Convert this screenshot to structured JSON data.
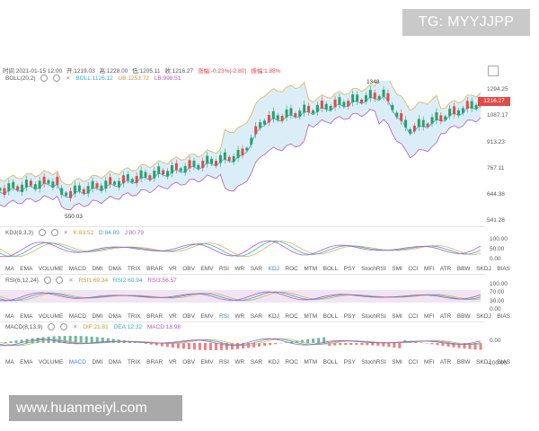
{
  "watermark_top": "TG: MYYJJPP",
  "watermark_bottom": "www.huanmeiyl.com",
  "info": {
    "time": "时间 2021-01-15 12:00",
    "open": "开:1219.03",
    "high": "高:1228.00",
    "low": "低:1205.11",
    "close": "收:1216.27",
    "change": "涨幅:-0.23%(-2.80)",
    "amplitude": "振幅:1.88%"
  },
  "boll": {
    "name": "BOLL(20,2)",
    "mid": "BOLL:1126.12",
    "ub": "UB:1253.72",
    "lb": "LB:998.51"
  },
  "price_axis": [
    "1294.25",
    "1087.17",
    "913.23",
    "767.11",
    "644.38",
    "541.28"
  ],
  "current_price": "1216.27",
  "annotations": {
    "high": "1348",
    "low": "550.03"
  },
  "kdj": {
    "name": "KDJ(9,3,3)",
    "k": "K:83.52",
    "d": "D:84.89",
    "j": "J:80.79",
    "axis": [
      "100.00",
      "50.00",
      "0.00"
    ]
  },
  "rsi": {
    "name": "RSI(6,12,24)",
    "rsi1": "RSI1:69.34",
    "rsi2": "RSI2:60.94",
    "rsi3": "RSI3:56.57",
    "axis": [
      "100.00",
      "70.00",
      "30.00",
      "0.00"
    ]
  },
  "macd": {
    "name": "MACD(8,13,9)",
    "dif": "DIF:21.81",
    "dea": "DEA:12.32",
    "macd": "MACD:18.98",
    "axis": [
      "0.00",
      "-100.00"
    ]
  },
  "indicator_tabs": [
    "MA",
    "EMA",
    "VOLUME",
    "MACD",
    "DMI",
    "DMA",
    "TRIX",
    "BRAR",
    "VR",
    "OBV",
    "EMV",
    "RSI",
    "WR",
    "SAR",
    "KDJ",
    "ROC",
    "MTM",
    "BOLL",
    "PSY",
    "StochRSI",
    "SMI",
    "CCI",
    "MFI",
    "ATR",
    "BBW",
    "SKDJ",
    "BIAS"
  ],
  "colors": {
    "up": "#2e9e6a",
    "down": "#e24a4a",
    "boll_fill": "#dbeef8",
    "mid": "#3aa9c9",
    "ub": "#d8b35a",
    "lb": "#b45ab4",
    "active_tab": "#4a7bd0"
  }
}
